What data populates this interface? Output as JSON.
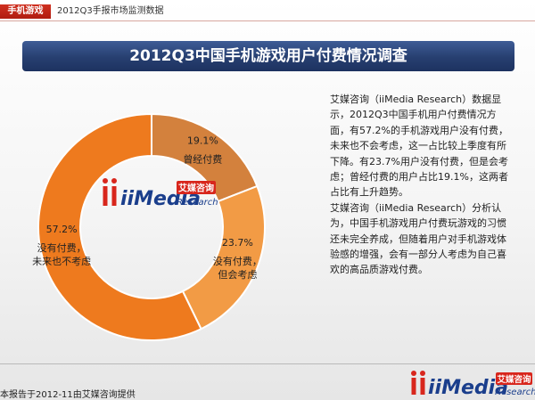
{
  "header": {
    "tag": "手机游戏",
    "topic": "2012Q3手报市场监测数据"
  },
  "banner": {
    "title": "2012Q3中国手机游戏用户付费情况调查"
  },
  "logo": {
    "brand": "iiMedia",
    "cn": "艾媒咨询",
    "en": "Research"
  },
  "chart_data": {
    "type": "pie",
    "variant": "donut",
    "title": "2012Q3中国手机游戏用户付费情况调查",
    "slices": [
      {
        "label": "曾经付费",
        "label_lines": [
          "曾经付费"
        ],
        "value": 19.1,
        "display": "19.1%",
        "color": "#d3813d"
      },
      {
        "label": "没有付费，但会考虑",
        "label_lines": [
          "没有付费，",
          "但会考虑"
        ],
        "value": 23.7,
        "display": "23.7%",
        "color": "#f29b45"
      },
      {
        "label": "没有付费，未来也不考虑",
        "label_lines": [
          "没有付费，",
          "未来也不考虑"
        ],
        "value": 57.2,
        "display": "57.2%",
        "color": "#ee7a1e"
      }
    ],
    "legend": "none"
  },
  "description": {
    "paragraph1": "艾媒咨询（iiMedia Research）数据显示，2012Q3中国手机用户付费情况方面，有57.2%的手机游戏用户没有付费，未来也不会考虑，这一占比较上季度有所下降。有23.7%用户没有付费，但是会考虑；曾经付费的用户占比19.1%，这两者占比有上升趋势。",
    "paragraph2": "艾媒咨询（iiMedia Research）分析认为，中国手机游戏用户付费玩游戏的习惯还未完全养成，但随着用户对手机游戏体验感的增强，会有一部分人考虑为自己喜欢的高品质游戏付费。"
  },
  "footer": {
    "note": "本报告于2012-11由艾媒咨询提供"
  },
  "colors": {
    "accent_red": "#c4261a",
    "banner_blue": "#2c4679"
  }
}
